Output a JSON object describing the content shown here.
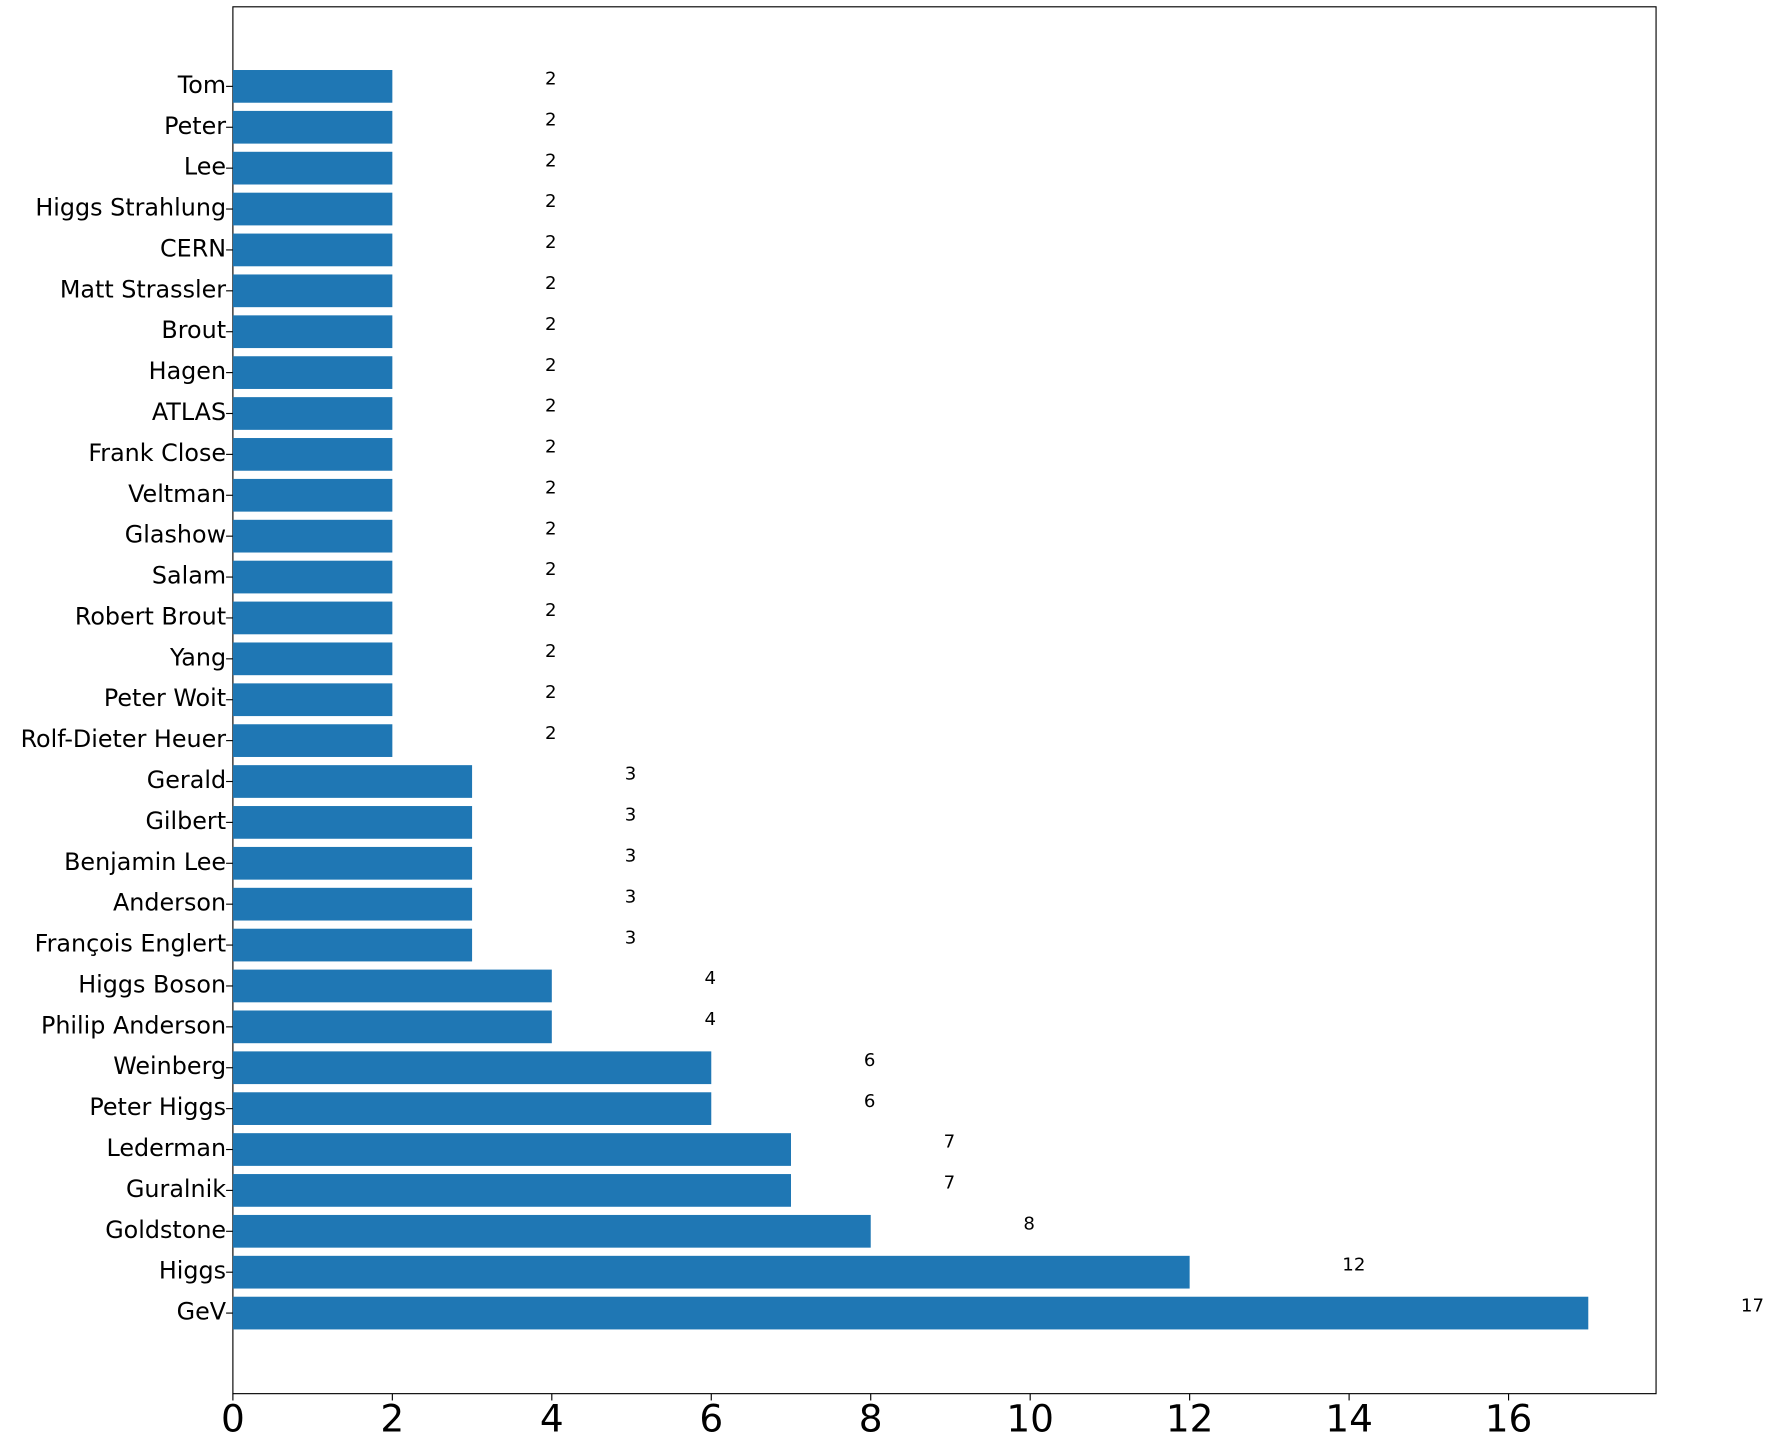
{
  "chart_data": {
    "type": "barh",
    "categories": [
      "GeV",
      "Higgs",
      "Goldstone",
      "Guralnik",
      "Lederman",
      "Peter Higgs",
      "Weinberg",
      "Philip Anderson",
      "Higgs Boson",
      "François Englert",
      "Anderson",
      "Benjamin Lee",
      "Gilbert",
      "Gerald",
      "Rolf-Dieter Heuer",
      "Peter Woit",
      "Yang",
      "Robert Brout",
      "Salam",
      "Glashow",
      "Veltman",
      "Frank Close",
      "ATLAS",
      "Hagen",
      "Brout",
      "Matt Strassler",
      "CERN",
      "Higgs Strahlung",
      "Lee",
      "Peter",
      "Tom"
    ],
    "values": [
      17,
      12,
      8,
      7,
      7,
      6,
      6,
      4,
      4,
      3,
      3,
      3,
      3,
      3,
      2,
      2,
      2,
      2,
      2,
      2,
      2,
      2,
      2,
      2,
      2,
      2,
      2,
      2,
      2,
      2,
      2
    ],
    "color": "#1f77b4",
    "xlim": [
      0,
      17.85
    ],
    "xticks": [
      0,
      2,
      4,
      6,
      8,
      10,
      12,
      14,
      16
    ],
    "grid": false
  }
}
